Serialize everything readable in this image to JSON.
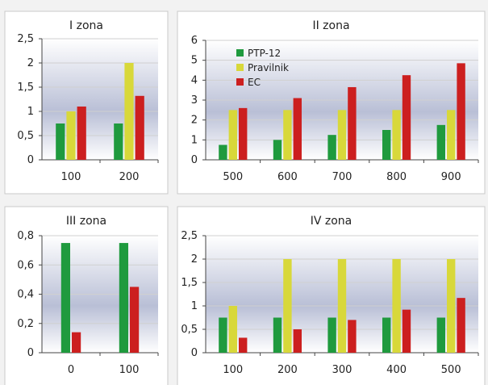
{
  "colors": {
    "PTP-12": "#1f9a3e",
    "Pravilnik": "#d8d83a",
    "EC": "#cc1f1f",
    "plot_gradient_top": "#ffffff",
    "plot_gradient_mid": "#b9bfd6",
    "plot_gradient_bottom": "#ffffff"
  },
  "legend": [
    "PTP-12",
    "Pravilnik",
    "EC"
  ],
  "chart_data": [
    {
      "type": "bar",
      "title": "I zona",
      "categories": [
        "100",
        "200"
      ],
      "y_ticks": [
        "0",
        "0,5",
        "1",
        "1,5",
        "2",
        "2,5"
      ],
      "ylim": [
        0,
        2.5
      ],
      "series": [
        {
          "name": "PTP-12",
          "values": [
            0.75,
            0.75
          ]
        },
        {
          "name": "Pravilnik",
          "values": [
            1.0,
            2.0
          ]
        },
        {
          "name": "EC",
          "values": [
            1.1,
            1.32
          ]
        }
      ]
    },
    {
      "type": "bar",
      "title": "II zona",
      "categories": [
        "500",
        "600",
        "700",
        "800",
        "900"
      ],
      "y_ticks": [
        "0",
        "1",
        "2",
        "3",
        "4",
        "5",
        "6"
      ],
      "ylim": [
        0,
        6
      ],
      "series": [
        {
          "name": "PTP-12",
          "values": [
            0.75,
            1.0,
            1.25,
            1.5,
            1.75
          ]
        },
        {
          "name": "Pravilnik",
          "values": [
            2.5,
            2.5,
            2.5,
            2.5,
            2.5
          ]
        },
        {
          "name": "EC",
          "values": [
            2.6,
            3.1,
            3.65,
            4.25,
            4.85
          ]
        }
      ]
    },
    {
      "type": "bar",
      "title": "III zona",
      "categories": [
        "0",
        "100"
      ],
      "y_ticks": [
        "0",
        "0,2",
        "0,4",
        "0,6",
        "0,8"
      ],
      "ylim": [
        0,
        0.8
      ],
      "series": [
        {
          "name": "PTP-12",
          "values": [
            0.75,
            0.75
          ]
        },
        {
          "name": "EC",
          "values": [
            0.14,
            0.45
          ]
        }
      ]
    },
    {
      "type": "bar",
      "title": "IV zona",
      "categories": [
        "100",
        "200",
        "300",
        "400",
        "500"
      ],
      "y_ticks": [
        "0",
        "0,5",
        "1",
        "1,5",
        "2",
        "2,5"
      ],
      "ylim": [
        0,
        2.5
      ],
      "series": [
        {
          "name": "PTP-12",
          "values": [
            0.75,
            0.75,
            0.75,
            0.75,
            0.75
          ]
        },
        {
          "name": "Pravilnik",
          "values": [
            1.0,
            2.0,
            2.0,
            2.0,
            2.0
          ]
        },
        {
          "name": "EC",
          "values": [
            0.32,
            0.5,
            0.7,
            0.92,
            1.17
          ]
        }
      ]
    }
  ]
}
